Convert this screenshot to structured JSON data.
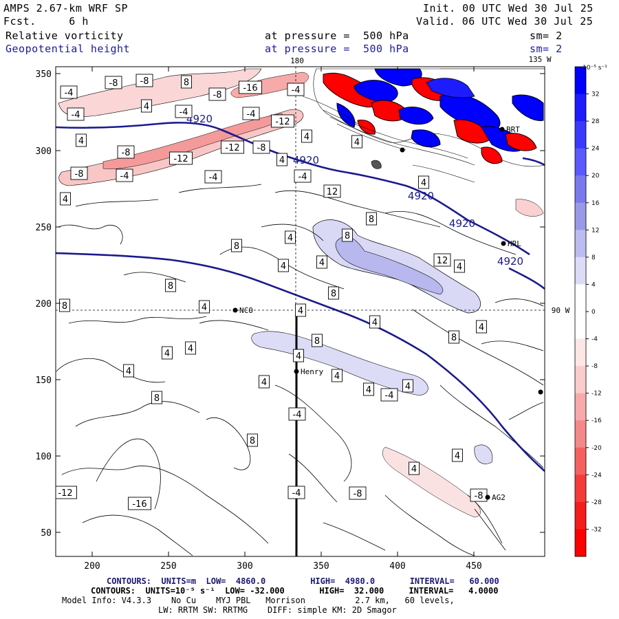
{
  "header": {
    "model_title": "AMPS 2.67-km WRF SP",
    "forecast": "Fcst.     6 h",
    "init": "Init. 00 UTC Wed 30 Jul 25",
    "valid": "Valid. 06 UTC Wed 30 Jul 25",
    "field1_name": "Relative vorticity",
    "field1_level": "at pressure =  500 hPa",
    "field1_sm": "sm= 2",
    "field2_name": "Geopotential height",
    "field2_level": "at pressure =  500 hPa",
    "field2_sm": "sm= 2"
  },
  "map": {
    "x_ticks": [
      "200",
      "250",
      "300",
      "350",
      "400",
      "450"
    ],
    "y_ticks": [
      "350",
      "300",
      "250",
      "200",
      "150",
      "100",
      "50"
    ],
    "lon_label_top": "180",
    "lon_label_corner": "135 W",
    "lat_label_right": "90 W",
    "stations": [
      "NCO",
      "Henry",
      "HRL",
      "AG2",
      "BRT"
    ],
    "height_contour_labels": [
      "4920",
      "4920",
      "4920",
      "4920",
      "4920"
    ],
    "vorticity_labels": [
      "-4",
      "-8",
      "-8",
      "8",
      "-8",
      "-16",
      "-4",
      "-4",
      "4",
      "-4",
      "-4",
      "-12",
      "-12",
      "-8",
      "-8",
      "-12",
      "-8",
      "-4",
      "4",
      "4",
      "-4",
      "4",
      "-4",
      "4",
      "12",
      "4",
      "4",
      "8",
      "8",
      "8",
      "4",
      "4",
      "4",
      "8",
      "12",
      "4",
      "8",
      "4",
      "8",
      "4",
      "4",
      "8",
      "4",
      "8",
      "4",
      "4",
      "4",
      "4",
      "4",
      "4",
      "4",
      "-4",
      "4",
      "8",
      "-4",
      "8",
      "4",
      "4",
      "-12",
      "-16",
      "-4",
      "-8",
      "-8"
    ],
    "colors": {
      "negative_strong": "#ff0000",
      "positive_strong": "#0000ff",
      "height_contour": "#1a1a8c"
    }
  },
  "colorbar": {
    "unit_label": "10⁻⁵ s⁻¹",
    "ticks": [
      "32",
      "28",
      "24",
      "20",
      "16",
      "12",
      "8",
      "4",
      "0",
      "-4",
      "-8",
      "-12",
      "-16",
      "-20",
      "-24",
      "-28",
      "-32"
    ],
    "colors": [
      "#0000ff",
      "#1c1cff",
      "#3a3aff",
      "#5a5aff",
      "#7a7aee",
      "#9999e8",
      "#bcbcf0",
      "#dcdcf8",
      "#ffffff",
      "#ffffff",
      "#fde6e6",
      "#fbcccc",
      "#f8aaaa",
      "#f58888",
      "#f56060",
      "#f53a3a",
      "#f51c1c",
      "#ff0000"
    ]
  },
  "footer": {
    "line1": "CONTOURS:  UNITS=m  LOW=  4860.0         HIGH=  4980.0       INTERVAL=   60.000",
    "line2": "CONTOURS:  UNITS=10⁻⁵ s⁻¹  LOW= -32.000       HIGH=  32.000     INTERVAL=   4.0000",
    "line3": "Model Info: V4.3.3    No Cu    MYJ PBL   Morrison          2.7 km,   60 levels,",
    "line4": "LW: RRTM SW: RRTMG    DIFF: simple KM: 2D Smagor"
  }
}
